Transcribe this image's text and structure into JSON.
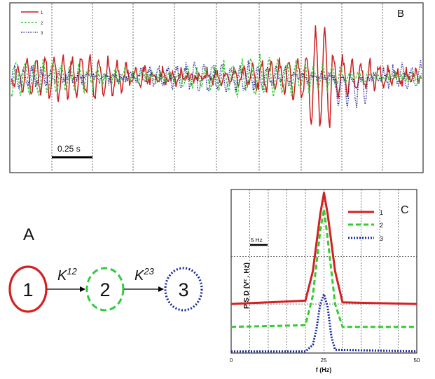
{
  "panelB": {
    "label": "B",
    "scale_bar": "0.25 s",
    "legend": [
      {
        "name": "1",
        "color": "#cc1f1f",
        "dash": "solid"
      },
      {
        "name": "2",
        "color": "#3dcc3d",
        "dash": "dashed"
      },
      {
        "name": "3",
        "color": "#1a1a8c",
        "dash": "dotted"
      }
    ]
  },
  "panelA": {
    "label": "A",
    "nodes": [
      {
        "label": "1",
        "color": "#d42020",
        "style": "solid"
      },
      {
        "label": "2",
        "color": "#2ecc40",
        "style": "dashed"
      },
      {
        "label": "3",
        "color": "#1a2a9c",
        "style": "dotted"
      }
    ],
    "edges": [
      {
        "base": "K",
        "sup": "12"
      },
      {
        "base": "K",
        "sup": "23"
      }
    ]
  },
  "chart_data": {
    "type": "line",
    "panel_label": "C",
    "xlabel": "f (Hz)",
    "ylabel": "P S D  (V² . Hz)",
    "x_ticks": [
      "0",
      "25",
      "50"
    ],
    "xlim": [
      0,
      50
    ],
    "ylim": [
      0,
      1
    ],
    "scale_bar": "5 Hz",
    "series": [
      {
        "name": "1",
        "color": "#d42020",
        "dash": "solid",
        "x": [
          0,
          20,
          22,
          24,
          25,
          26,
          28,
          30,
          50
        ],
        "y": [
          0.3,
          0.32,
          0.5,
          0.85,
          0.98,
          0.85,
          0.5,
          0.31,
          0.3
        ]
      },
      {
        "name": "2",
        "color": "#33cc33",
        "dash": "dashed",
        "x": [
          0,
          20,
          22,
          24,
          25,
          26,
          28,
          30,
          50
        ],
        "y": [
          0.16,
          0.17,
          0.35,
          0.75,
          0.88,
          0.7,
          0.3,
          0.16,
          0.16
        ]
      },
      {
        "name": "3",
        "color": "#1a2a9c",
        "dash": "dotted",
        "x": [
          0,
          20,
          22,
          23,
          24,
          25,
          26,
          27,
          28,
          50
        ],
        "y": [
          0.01,
          0.01,
          0.05,
          0.15,
          0.3,
          0.36,
          0.28,
          0.1,
          0.02,
          0.01
        ]
      }
    ]
  }
}
